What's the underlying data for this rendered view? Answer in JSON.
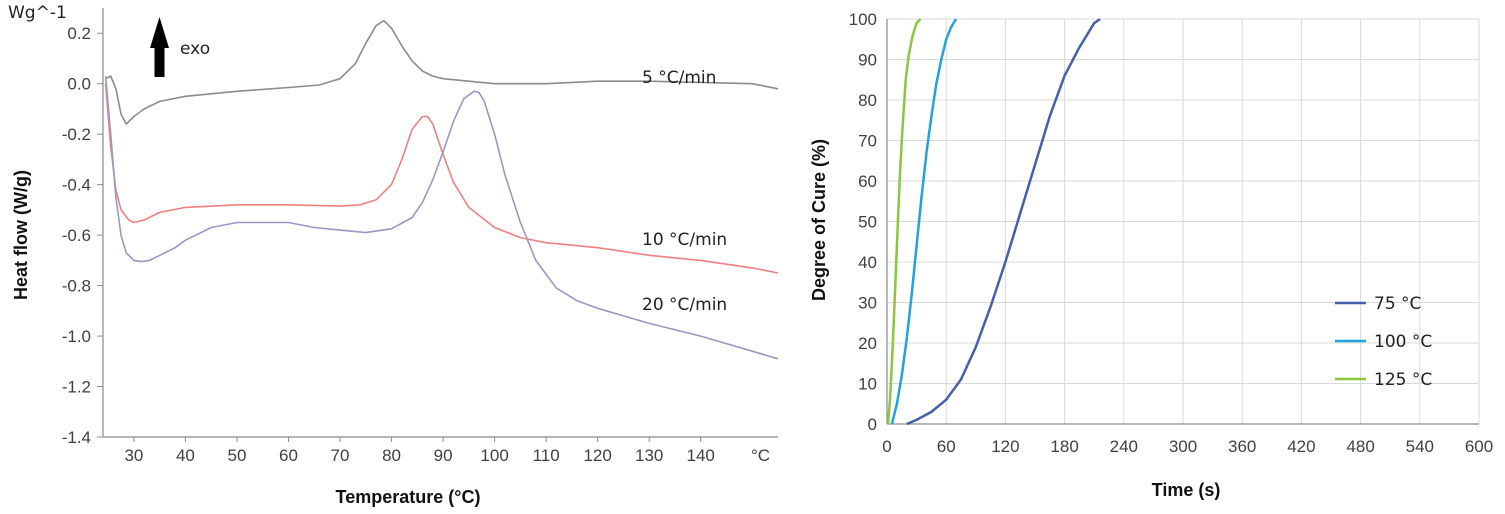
{
  "chart_data": [
    {
      "type": "line",
      "title": "",
      "xlabel": "Temperature (°C)",
      "ylabel": "Heat flow (W/g)",
      "yunit_label": "Wg^-1",
      "xunit_label": "°C",
      "annotation": "exo",
      "xlim": [
        24,
        155
      ],
      "ylim": [
        -1.4,
        0.3
      ],
      "xticks": [
        30,
        40,
        50,
        60,
        70,
        80,
        90,
        100,
        110,
        120,
        130,
        140
      ],
      "xtick_labels": [
        "30",
        "40",
        "50",
        "60",
        "70",
        "80",
        "90",
        "100",
        "110",
        "120",
        "130",
        "140"
      ],
      "yticks": [
        0.2,
        0.0,
        -0.2,
        -0.4,
        -0.6,
        -0.8,
        -1.0,
        -1.2,
        -1.4
      ],
      "ytick_labels": [
        "0.2",
        "0.0",
        "-0.2",
        "-0.4",
        "-0.6",
        "-0.8",
        "-1.0",
        "-1.2",
        "-1.4"
      ],
      "grid": false,
      "series": [
        {
          "name": "5 °C/min",
          "color": "#8c8c8c",
          "x": [
            24.5,
            25.5,
            26.5,
            27.5,
            28.5,
            30,
            32,
            35,
            40,
            50,
            60,
            66,
            70,
            73,
            75,
            77,
            78.5,
            80,
            82,
            84,
            86,
            88,
            90,
            95,
            100,
            110,
            120,
            130,
            140,
            150,
            155
          ],
          "y": [
            0.02,
            0.03,
            -0.02,
            -0.12,
            -0.16,
            -0.13,
            -0.1,
            -0.07,
            -0.05,
            -0.03,
            -0.015,
            -0.005,
            0.02,
            0.08,
            0.16,
            0.23,
            0.25,
            0.22,
            0.15,
            0.09,
            0.05,
            0.03,
            0.02,
            0.01,
            0.0,
            0.0,
            0.01,
            0.01,
            0.005,
            0.0,
            -0.02
          ]
        },
        {
          "name": "10 °C/min",
          "color": "#f08080",
          "x": [
            24.5,
            25.5,
            26.5,
            27.5,
            29,
            30,
            32,
            35,
            40,
            50,
            60,
            70,
            74,
            77,
            80,
            82,
            84,
            86,
            87,
            88,
            90,
            92,
            95,
            100,
            105,
            110,
            120,
            130,
            140,
            150,
            155
          ],
          "y": [
            0.0,
            -0.25,
            -0.42,
            -0.5,
            -0.54,
            -0.55,
            -0.54,
            -0.51,
            -0.49,
            -0.48,
            -0.48,
            -0.485,
            -0.48,
            -0.46,
            -0.4,
            -0.3,
            -0.18,
            -0.13,
            -0.13,
            -0.16,
            -0.28,
            -0.39,
            -0.49,
            -0.57,
            -0.61,
            -0.63,
            -0.65,
            -0.68,
            -0.7,
            -0.73,
            -0.75
          ]
        },
        {
          "name": "20 °C/min",
          "color": "#9a97c8",
          "x": [
            24.5,
            25.5,
            26.5,
            27.5,
            28.5,
            30,
            31.5,
            33,
            35,
            38,
            40,
            43,
            45,
            50,
            55,
            60,
            65,
            70,
            75,
            80,
            84,
            86,
            88,
            90,
            92,
            94,
            96,
            97,
            98,
            100,
            102,
            105,
            108,
            112,
            116,
            120,
            130,
            140,
            150,
            155
          ],
          "y": [
            0.03,
            -0.2,
            -0.45,
            -0.6,
            -0.67,
            -0.7,
            -0.705,
            -0.7,
            -0.68,
            -0.65,
            -0.62,
            -0.59,
            -0.57,
            -0.55,
            -0.55,
            -0.55,
            -0.57,
            -0.58,
            -0.59,
            -0.575,
            -0.53,
            -0.47,
            -0.38,
            -0.27,
            -0.15,
            -0.06,
            -0.03,
            -0.035,
            -0.07,
            -0.2,
            -0.36,
            -0.55,
            -0.7,
            -0.81,
            -0.86,
            -0.89,
            -0.95,
            -1.0,
            -1.06,
            -1.09
          ]
        }
      ],
      "series_labels": [
        "5 °C/min",
        "10 °C/min",
        "20 °C/min"
      ]
    },
    {
      "type": "line",
      "title": "",
      "xlabel": "Time (s)",
      "ylabel": "Degree of Cure (%)",
      "xlim": [
        0,
        600
      ],
      "ylim": [
        0,
        100
      ],
      "xticks": [
        0,
        60,
        120,
        180,
        240,
        300,
        360,
        420,
        480,
        540,
        600
      ],
      "xtick_labels": [
        "0",
        "60",
        "120",
        "180",
        "240",
        "300",
        "360",
        "420",
        "480",
        "540",
        "600"
      ],
      "yticks": [
        0,
        10,
        20,
        30,
        40,
        50,
        60,
        70,
        80,
        90,
        100
      ],
      "ytick_labels": [
        "0",
        "10",
        "20",
        "30",
        "40",
        "50",
        "60",
        "70",
        "80",
        "90",
        "100"
      ],
      "grid": true,
      "legend_position": "bottom-right",
      "series": [
        {
          "name": "75 °C",
          "color": "#4460aa",
          "x": [
            20,
            30,
            45,
            60,
            75,
            90,
            105,
            120,
            135,
            150,
            165,
            180,
            195,
            210,
            216
          ],
          "y": [
            0,
            1,
            3,
            6,
            11,
            19,
            29,
            40,
            52,
            64,
            76,
            86,
            93,
            99,
            100
          ]
        },
        {
          "name": "100 °C",
          "color": "#22a2de",
          "x": [
            5,
            10,
            15,
            20,
            25,
            30,
            35,
            40,
            45,
            50,
            55,
            60,
            65,
            70
          ],
          "y": [
            0,
            5,
            12,
            21,
            32,
            44,
            56,
            67,
            76,
            84,
            90,
            95,
            98,
            100
          ]
        },
        {
          "name": "125 °C",
          "color": "#8cc63f",
          "x": [
            1,
            3,
            5,
            7,
            9,
            11,
            13,
            15,
            17,
            19,
            22,
            26,
            30,
            34
          ],
          "y": [
            0,
            6,
            15,
            26,
            38,
            50,
            61,
            70,
            78,
            85,
            91,
            96,
            99,
            100
          ]
        }
      ]
    }
  ]
}
